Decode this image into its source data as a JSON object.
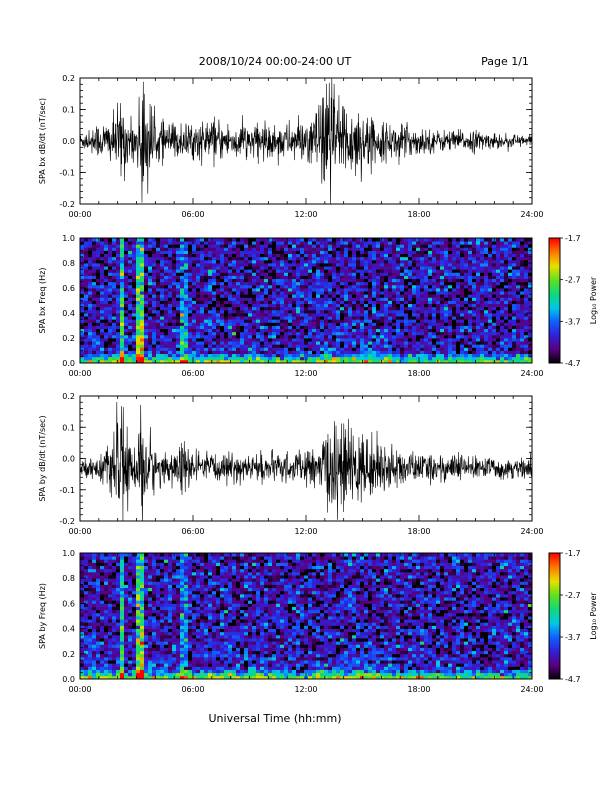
{
  "header": {
    "date_range": "2008/10/24  00:00-24:00 UT",
    "page": "Page 1/1"
  },
  "x_axis": {
    "tick_labels": [
      "00:00",
      "06:00",
      "12:00",
      "18:00",
      "24:00"
    ],
    "tick_hours": [
      0,
      6,
      12,
      18,
      24
    ],
    "range_hours": [
      0,
      24
    ],
    "xlabel": "Universal Time (hh:mm)"
  },
  "colorbar": {
    "ticks": [
      -1.7,
      -2.7,
      -3.7,
      -4.7
    ],
    "tick_labels": [
      "-1.7",
      "-2.7",
      "-3.7",
      "-4.7"
    ],
    "range": [
      -4.7,
      -1.7
    ],
    "label": "Log₁₀ Power",
    "colormap": [
      "#000000",
      "#5a0080",
      "#3020d8",
      "#1060ff",
      "#00c8e8",
      "#10d878",
      "#60e020",
      "#e8e000",
      "#ff7800",
      "#ff0000"
    ]
  },
  "chart_data": [
    {
      "type": "line",
      "ylabel": "SPA bx dB/dt (nT/sec)",
      "ylim": [
        -0.2,
        0.2
      ],
      "yticks": [
        0.2,
        0.1,
        0.0,
        -0.1,
        -0.2
      ],
      "ytick_labels": [
        "0.2",
        "0.1",
        "0.0",
        "-0.1",
        "-0.2"
      ],
      "baseline": 0.0,
      "line_color": "#000000",
      "series_note_hours": [
        0,
        24
      ],
      "envelope": {
        "hours": [
          0,
          1,
          1.8,
          2.2,
          2.6,
          3.0,
          3.3,
          4,
          5,
          6,
          7,
          8,
          9,
          10,
          11,
          12,
          12.5,
          13,
          13.3,
          13.6,
          14,
          15,
          16,
          17,
          18,
          19,
          20,
          21,
          22,
          23,
          24
        ],
        "amplitude": [
          0.02,
          0.05,
          0.07,
          0.12,
          0.06,
          0.05,
          0.2,
          0.06,
          0.05,
          0.05,
          0.06,
          0.05,
          0.05,
          0.05,
          0.05,
          0.06,
          0.09,
          0.13,
          0.2,
          0.16,
          0.12,
          0.08,
          0.05,
          0.05,
          0.04,
          0.03,
          0.03,
          0.03,
          0.02,
          0.02,
          0.02
        ]
      }
    },
    {
      "type": "heatmap",
      "ylabel": "SPA bx Freq (Hz)",
      "ylim": [
        0.0,
        1.0
      ],
      "yticks": [
        1.0,
        0.8,
        0.6,
        0.4,
        0.2,
        0.0
      ],
      "ytick_labels": [
        "1.0",
        "0.8",
        "0.6",
        "0.4",
        "0.2",
        "0.0"
      ],
      "value_range": [
        -4.7,
        -1.7
      ],
      "background_level": -4.2,
      "bright_lines_hours": [
        2.2,
        3.2,
        3.35,
        5.4,
        5.7
      ],
      "low_freq_band_hz": 0.05
    },
    {
      "type": "line",
      "ylabel": "SPA by dB/dt (nT/sec)",
      "ylim": [
        -0.2,
        0.2
      ],
      "yticks": [
        0.2,
        0.1,
        0.0,
        -0.1,
        -0.2
      ],
      "ytick_labels": [
        "0.2",
        "0.1",
        "0.0",
        "-0.1",
        "-0.2"
      ],
      "baseline": -0.03,
      "line_color": "#000000",
      "envelope": {
        "hours": [
          0,
          1,
          1.8,
          2.2,
          2.6,
          3.0,
          3.3,
          4,
          5,
          5.5,
          6,
          7,
          8,
          9,
          10,
          11,
          12,
          12.8,
          13,
          13.5,
          14,
          15,
          16,
          17,
          18,
          19,
          20,
          21,
          22,
          23,
          24
        ],
        "amplitude": [
          0.015,
          0.04,
          0.07,
          0.2,
          0.07,
          0.06,
          0.2,
          0.05,
          0.05,
          0.08,
          0.04,
          0.04,
          0.04,
          0.04,
          0.04,
          0.04,
          0.05,
          0.06,
          0.1,
          0.15,
          0.12,
          0.1,
          0.07,
          0.05,
          0.04,
          0.04,
          0.04,
          0.03,
          0.03,
          0.03,
          0.03
        ]
      }
    },
    {
      "type": "heatmap",
      "ylabel": "SPA by Freq (Hz)",
      "ylim": [
        0.0,
        1.0
      ],
      "yticks": [
        1.0,
        0.8,
        0.6,
        0.4,
        0.2,
        0.0
      ],
      "ytick_labels": [
        "1.0",
        "0.8",
        "0.6",
        "0.4",
        "0.2",
        "0.0"
      ],
      "value_range": [
        -4.7,
        -1.7
      ],
      "background_level": -4.2,
      "bright_lines_hours": [
        2.2,
        3.2,
        3.35,
        5.4,
        5.7
      ],
      "low_freq_band_hz": 0.06
    }
  ]
}
